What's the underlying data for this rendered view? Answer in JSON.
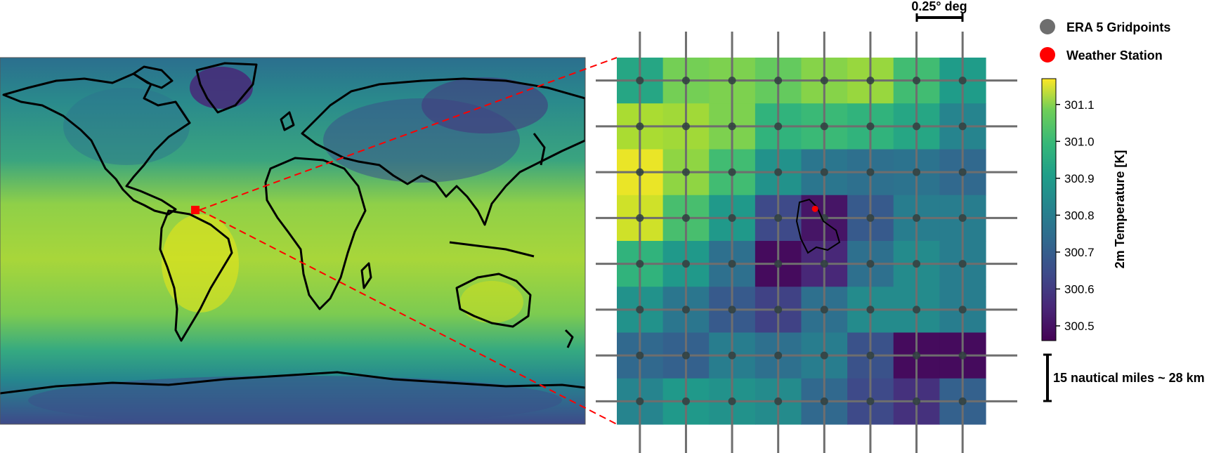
{
  "figure": {
    "scale_bar_deg": "0.25° deg",
    "scale_bar_distance": "15 nautical miles ~ 28 km"
  },
  "legend": {
    "items": [
      {
        "label": "ERA 5 Gridpoints",
        "color": "#6e6e6e"
      },
      {
        "label": "Weather Station",
        "color": "#ff0000"
      }
    ]
  },
  "colorbar": {
    "label": "2m Temperature  [K]",
    "ticks": [
      "301.1",
      "301.0",
      "300.9",
      "300.8",
      "300.7",
      "300.6",
      "300.5"
    ],
    "tick_values": [
      301.1,
      301.0,
      300.9,
      300.8,
      300.7,
      300.6,
      300.5
    ],
    "vmin": 300.46,
    "vmax": 301.17,
    "colormap": "viridis"
  },
  "chart_data": {
    "type": "heatmap",
    "title": "",
    "variable": "2m Temperature [K]",
    "grid": {
      "rows": 8,
      "cols": 8,
      "values": [
        [
          300.88,
          301.02,
          301.03,
          301.0,
          301.04,
          301.06,
          300.95,
          300.85
        ],
        [
          301.08,
          301.07,
          301.03,
          300.92,
          300.94,
          300.92,
          300.88,
          300.78
        ],
        [
          301.15,
          301.05,
          300.95,
          300.82,
          300.74,
          300.72,
          300.73,
          300.7
        ],
        [
          301.12,
          300.96,
          300.84,
          300.62,
          300.5,
          300.66,
          300.76,
          300.76
        ],
        [
          300.92,
          300.84,
          300.72,
          300.48,
          300.54,
          300.72,
          300.8,
          300.76
        ],
        [
          300.82,
          300.74,
          300.66,
          300.6,
          300.72,
          300.8,
          300.8,
          300.76
        ],
        [
          300.7,
          300.68,
          300.76,
          300.72,
          300.76,
          300.64,
          300.48,
          300.48
        ],
        [
          300.78,
          300.84,
          300.82,
          300.8,
          300.7,
          300.62,
          300.56,
          300.68
        ]
      ]
    },
    "gridpoint_rows": 8,
    "gridpoint_cols": 8,
    "station": {
      "row": 3.3,
      "col": 4.3
    }
  }
}
